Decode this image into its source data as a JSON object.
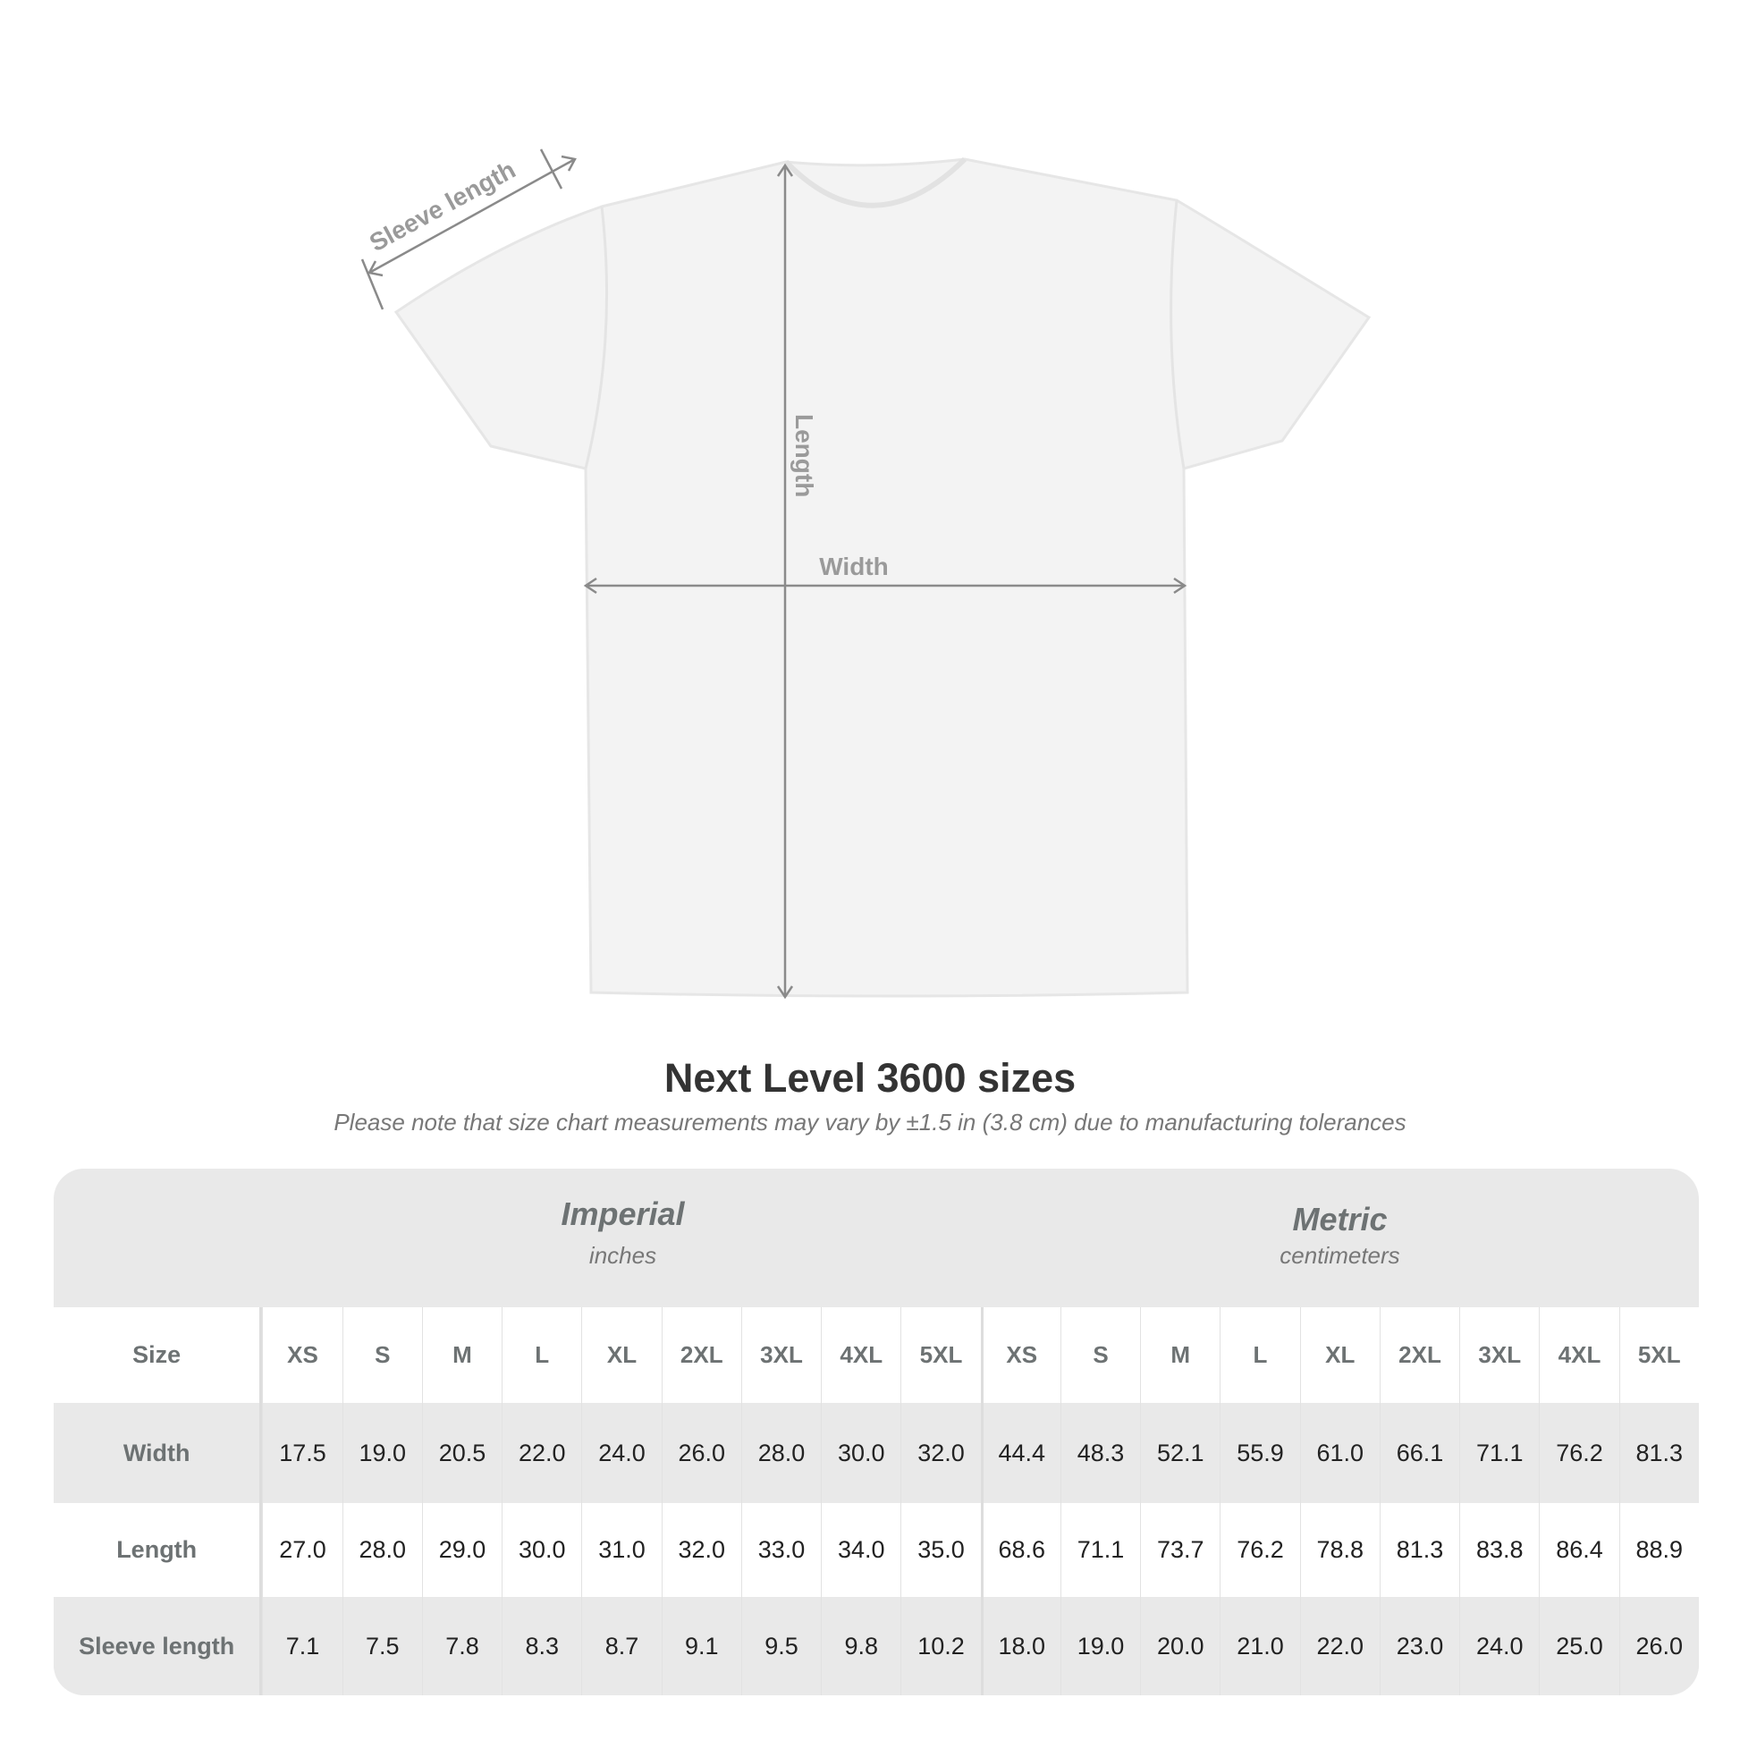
{
  "diagram": {
    "labels": {
      "sleeve": "Sleeve length",
      "length": "Length",
      "width": "Width"
    }
  },
  "title": "Next Level 3600 sizes",
  "subtitle": "Please note that size chart measurements may vary by ±1.5 in (3.8 cm) due to manufacturing tolerances",
  "table": {
    "imperial": {
      "title": "Imperial",
      "unit": "inches"
    },
    "metric": {
      "title": "Metric",
      "unit": "centimeters"
    },
    "size_label": "Size",
    "sizes": [
      "XS",
      "S",
      "M",
      "L",
      "XL",
      "2XL",
      "3XL",
      "4XL",
      "5XL"
    ],
    "rows": [
      {
        "label": "Width",
        "imperial": [
          "17.5",
          "19.0",
          "20.5",
          "22.0",
          "24.0",
          "26.0",
          "28.0",
          "30.0",
          "32.0"
        ],
        "metric": [
          "44.4",
          "48.3",
          "52.1",
          "55.9",
          "61.0",
          "66.1",
          "71.1",
          "76.2",
          "81.3"
        ]
      },
      {
        "label": "Length",
        "imperial": [
          "27.0",
          "28.0",
          "29.0",
          "30.0",
          "31.0",
          "32.0",
          "33.0",
          "34.0",
          "35.0"
        ],
        "metric": [
          "68.6",
          "71.1",
          "73.7",
          "76.2",
          "78.8",
          "81.3",
          "83.8",
          "86.4",
          "88.9"
        ]
      },
      {
        "label": "Sleeve length",
        "imperial": [
          "7.1",
          "7.5",
          "7.8",
          "8.3",
          "8.7",
          "9.1",
          "9.5",
          "9.8",
          "10.2"
        ],
        "metric": [
          "18.0",
          "19.0",
          "20.0",
          "21.0",
          "22.0",
          "23.0",
          "24.0",
          "25.0",
          "26.0"
        ]
      }
    ]
  },
  "colors": {
    "header_bg": "#e9e9e9",
    "label_text": "#6d7273",
    "measure_lines": "#8a8a8a"
  }
}
